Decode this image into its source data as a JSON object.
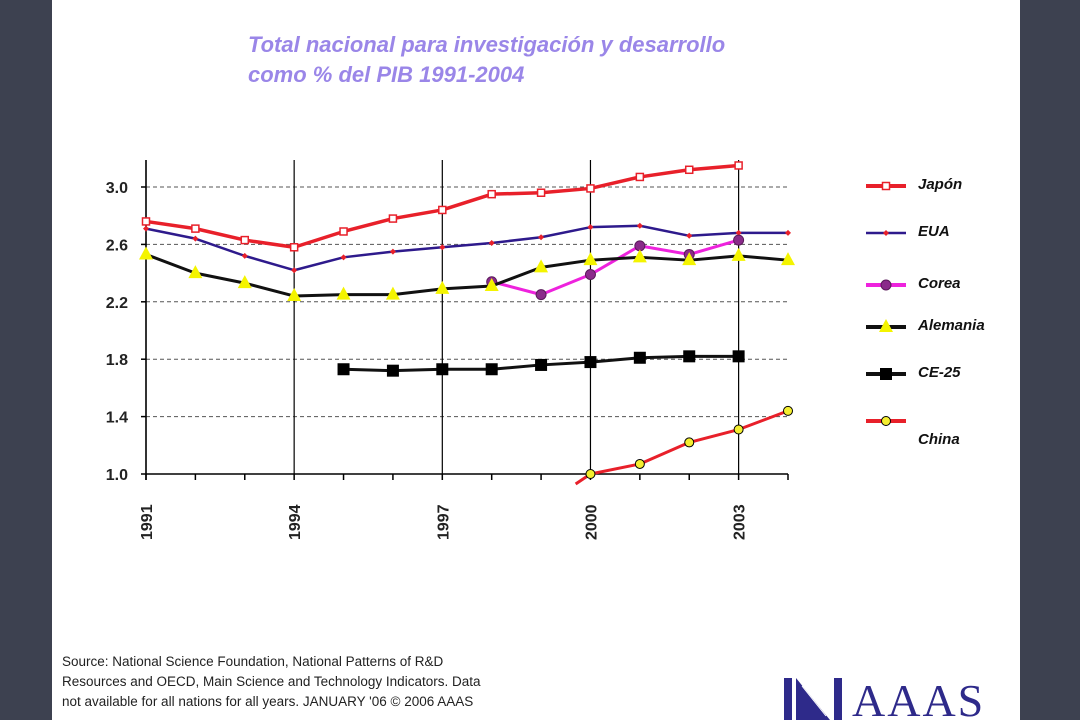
{
  "title_line1": "Total nacional para investigación y desarrollo",
  "title_line2": "como % del PIB 1991-2004",
  "chart_data": {
    "type": "line",
    "title": "Total nacional para investigación y desarrollo como % del PIB 1991-2004",
    "x": [
      1991,
      1992,
      1993,
      1994,
      1995,
      1996,
      1997,
      1998,
      1999,
      2000,
      2001,
      2002,
      2003,
      2004
    ],
    "x_tick_labels": [
      "1991",
      "1994",
      "1997",
      "2000",
      "2003"
    ],
    "x_ticks": [
      1991,
      1994,
      1997,
      2000,
      2003
    ],
    "y_tick_labels": [
      "1.0",
      "1.4",
      "1.8",
      "2.2",
      "2.6",
      "3.0"
    ],
    "y_ticks": [
      1.0,
      1.4,
      1.8,
      2.2,
      2.6,
      3.0
    ],
    "ylim": [
      1.0,
      3.2
    ],
    "xlim": [
      1991,
      2004
    ],
    "grid": "horizontal dashed",
    "legend_position": "right",
    "series": [
      {
        "name": "Japón",
        "color": "#e8202a",
        "marker": "open-square",
        "values": [
          2.76,
          2.71,
          2.63,
          2.58,
          2.69,
          2.78,
          2.84,
          2.95,
          2.96,
          2.99,
          3.07,
          3.12,
          3.15,
          null
        ]
      },
      {
        "name": "EUA",
        "color": "#2e1a8c",
        "marker": "small-diamond",
        "values": [
          2.71,
          2.64,
          2.52,
          2.42,
          2.51,
          2.55,
          2.58,
          2.61,
          2.65,
          2.72,
          2.73,
          2.66,
          2.68,
          2.68
        ]
      },
      {
        "name": "Corea",
        "color": "#ee22dd",
        "marker": "circle",
        "values": [
          null,
          null,
          null,
          null,
          null,
          null,
          null,
          2.34,
          2.25,
          2.39,
          2.59,
          2.53,
          2.63,
          null
        ]
      },
      {
        "name": "Alemania",
        "color": "#111111",
        "marker": "triangle",
        "values": [
          2.53,
          2.4,
          2.33,
          2.24,
          2.25,
          2.25,
          2.29,
          2.31,
          2.44,
          2.49,
          2.51,
          2.49,
          2.52,
          2.49
        ]
      },
      {
        "name": "CE-25",
        "color": "#111111",
        "marker": "filled-square",
        "values": [
          null,
          null,
          null,
          null,
          1.73,
          1.72,
          1.73,
          1.73,
          1.76,
          1.78,
          1.81,
          1.82,
          1.82,
          null
        ]
      },
      {
        "name": "China",
        "color": "#e8202a",
        "marker": "yellow-circle",
        "values": [
          null,
          null,
          null,
          null,
          null,
          null,
          null,
          null,
          null,
          1.0,
          1.07,
          1.22,
          1.31,
          1.44
        ],
        "segment_start_value": 0.93,
        "segment_start_x": 1999.7
      }
    ]
  },
  "legend": [
    {
      "name": "Japón"
    },
    {
      "name": "EUA"
    },
    {
      "name": "Corea"
    },
    {
      "name": "Alemania"
    },
    {
      "name": "CE-25"
    },
    {
      "name": "China"
    }
  ],
  "source": {
    "line1": "Source: National Science Foundation, National Patterns of R&D",
    "line2": "Resources and OECD, Main Science and Technology Indicators. Data",
    "line3": "not available for all nations for all years. JANUARY '06 © 2006 AAAS"
  },
  "logo": {
    "text": "AAAS",
    "color": "#2e2a8a"
  }
}
